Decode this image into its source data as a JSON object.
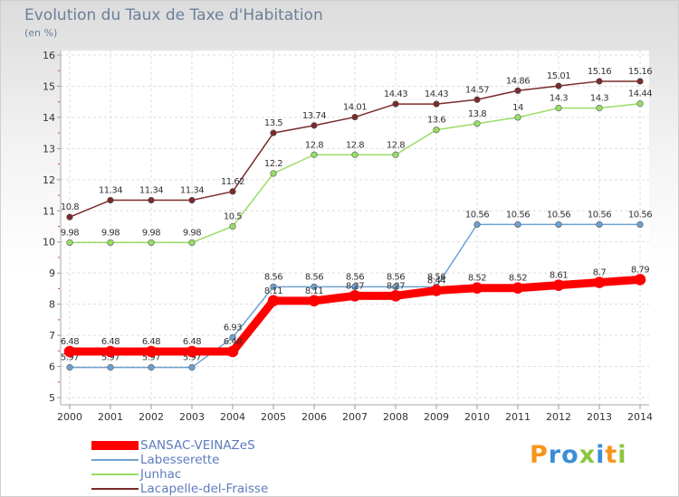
{
  "title": "Evolution du Taux de Taxe d'Habitation",
  "subtitle": "(en %)",
  "brand": {
    "letters": [
      "P",
      "r",
      "o",
      "x",
      "i",
      "t",
      "i"
    ],
    "colors": [
      "#f7941d",
      "#3a8fd6",
      "#3a8fd6",
      "#8cc63f",
      "#3a8fd6",
      "#f7941d",
      "#8cc63f"
    ]
  },
  "chart_data": {
    "type": "line",
    "x": [
      "2000",
      "2001",
      "2002",
      "2003",
      "2004",
      "2005",
      "2006",
      "2007",
      "2008",
      "2009",
      "2010",
      "2011",
      "2012",
      "2013",
      "2014"
    ],
    "ylim": [
      5,
      16
    ],
    "yticks": [
      "5",
      "6",
      "7",
      "8",
      "9",
      "10",
      "11",
      "12",
      "13",
      "14",
      "15",
      "16"
    ],
    "grid": true,
    "legend_position": "bottom-left",
    "series": [
      {
        "name": "SANSAC-VEINAZeS",
        "color": "#ff0000",
        "width": 9,
        "values": [
          6.48,
          6.48,
          6.48,
          6.48,
          6.48,
          8.11,
          8.11,
          8.27,
          8.27,
          8.44,
          8.52,
          8.52,
          8.61,
          8.7,
          8.79
        ],
        "labels": [
          "6.48",
          "6.48",
          "6.48",
          "6.48",
          "6.48",
          "8.11",
          "8.11",
          "8.27",
          "8.27",
          "8.44",
          "8.52",
          "8.52",
          "8.61",
          "8.7",
          "8.79"
        ]
      },
      {
        "name": "Labesserette",
        "color": "#6fa1cf",
        "width": 1.5,
        "values": [
          5.97,
          5.97,
          5.97,
          5.97,
          6.93,
          8.56,
          8.56,
          8.56,
          8.56,
          8.56,
          10.56,
          10.56,
          10.56,
          10.56,
          10.56
        ],
        "labels": [
          "5.97",
          "5.97",
          "5.97",
          "5.97",
          "6.93",
          "8.56",
          "8.56",
          "8.56",
          "8.56",
          "8.56",
          "10.56",
          "10.56",
          "10.56",
          "10.56",
          "10.56"
        ]
      },
      {
        "name": "Junhac",
        "color": "#99dd66",
        "width": 1.5,
        "values": [
          9.98,
          9.98,
          9.98,
          9.98,
          10.5,
          12.2,
          12.8,
          12.8,
          12.8,
          13.6,
          13.8,
          14,
          14.3,
          14.3,
          14.44
        ],
        "labels": [
          "9.98",
          "9.98",
          "9.98",
          "9.98",
          "10.5",
          "12.2",
          "12.8",
          "12.8",
          "12.8",
          "13.6",
          "13.8",
          "14",
          "14.3",
          "14.3",
          "14.44"
        ]
      },
      {
        "name": "Lacapelle-del-Fraisse",
        "color": "#7a2b2b",
        "width": 1.5,
        "values": [
          10.8,
          11.34,
          11.34,
          11.34,
          11.62,
          13.5,
          13.74,
          14.01,
          14.43,
          14.43,
          14.57,
          14.86,
          15.01,
          15.16,
          15.16
        ],
        "labels": [
          "10.8",
          "11.34",
          "11.34",
          "11.34",
          "11.62",
          "13.5",
          "13.74",
          "14.01",
          "14.43",
          "14.43",
          "14.57",
          "14.86",
          "15.01",
          "15.16",
          "15.16"
        ]
      }
    ]
  }
}
